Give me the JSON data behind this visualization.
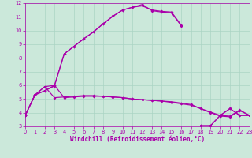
{
  "xlabel": "Windchill (Refroidissement éolien,°C)",
  "bg_color": "#cbe8da",
  "grid_color": "#aad4c4",
  "line_color": "#aa00aa",
  "xlim": [
    0,
    23
  ],
  "ylim": [
    3,
    12
  ],
  "xticks": [
    0,
    1,
    2,
    3,
    4,
    5,
    6,
    7,
    8,
    9,
    10,
    11,
    12,
    13,
    14,
    15,
    16,
    17,
    18,
    19,
    20,
    21,
    22,
    23
  ],
  "yticks": [
    3,
    4,
    5,
    6,
    7,
    8,
    9,
    10,
    11,
    12
  ],
  "curves": [
    [
      3.8,
      5.3,
      5.9,
      6.0,
      5.1,
      5.15,
      5.2,
      5.2,
      5.2,
      5.15,
      5.1,
      5.0,
      4.95,
      4.9,
      4.85,
      4.8,
      4.7,
      4.6,
      4.3,
      4.05,
      3.8,
      3.75,
      4.2,
      3.8
    ],
    [
      3.8,
      5.3,
      5.9,
      5.1,
      5.15,
      5.2,
      5.25,
      5.25,
      5.2,
      5.15,
      5.1,
      5.0,
      4.95,
      4.9,
      4.85,
      4.75,
      4.65,
      4.55,
      4.3,
      4.0,
      3.75,
      3.7,
      4.15,
      3.8
    ],
    [
      3.8,
      5.3,
      5.6,
      5.95,
      8.3,
      8.85,
      9.4,
      9.9,
      10.5,
      11.05,
      11.5,
      11.7,
      11.9,
      11.45,
      11.35,
      11.3,
      10.35,
      null,
      3.05,
      3.05,
      3.8,
      4.3,
      3.8,
      3.8
    ],
    [
      3.8,
      5.3,
      5.6,
      6.0,
      8.3,
      8.85,
      9.4,
      9.9,
      10.5,
      11.05,
      11.5,
      11.7,
      11.8,
      11.5,
      11.4,
      11.35,
      10.4,
      null,
      3.05,
      3.05,
      3.8,
      4.3,
      3.8,
      3.8
    ]
  ]
}
